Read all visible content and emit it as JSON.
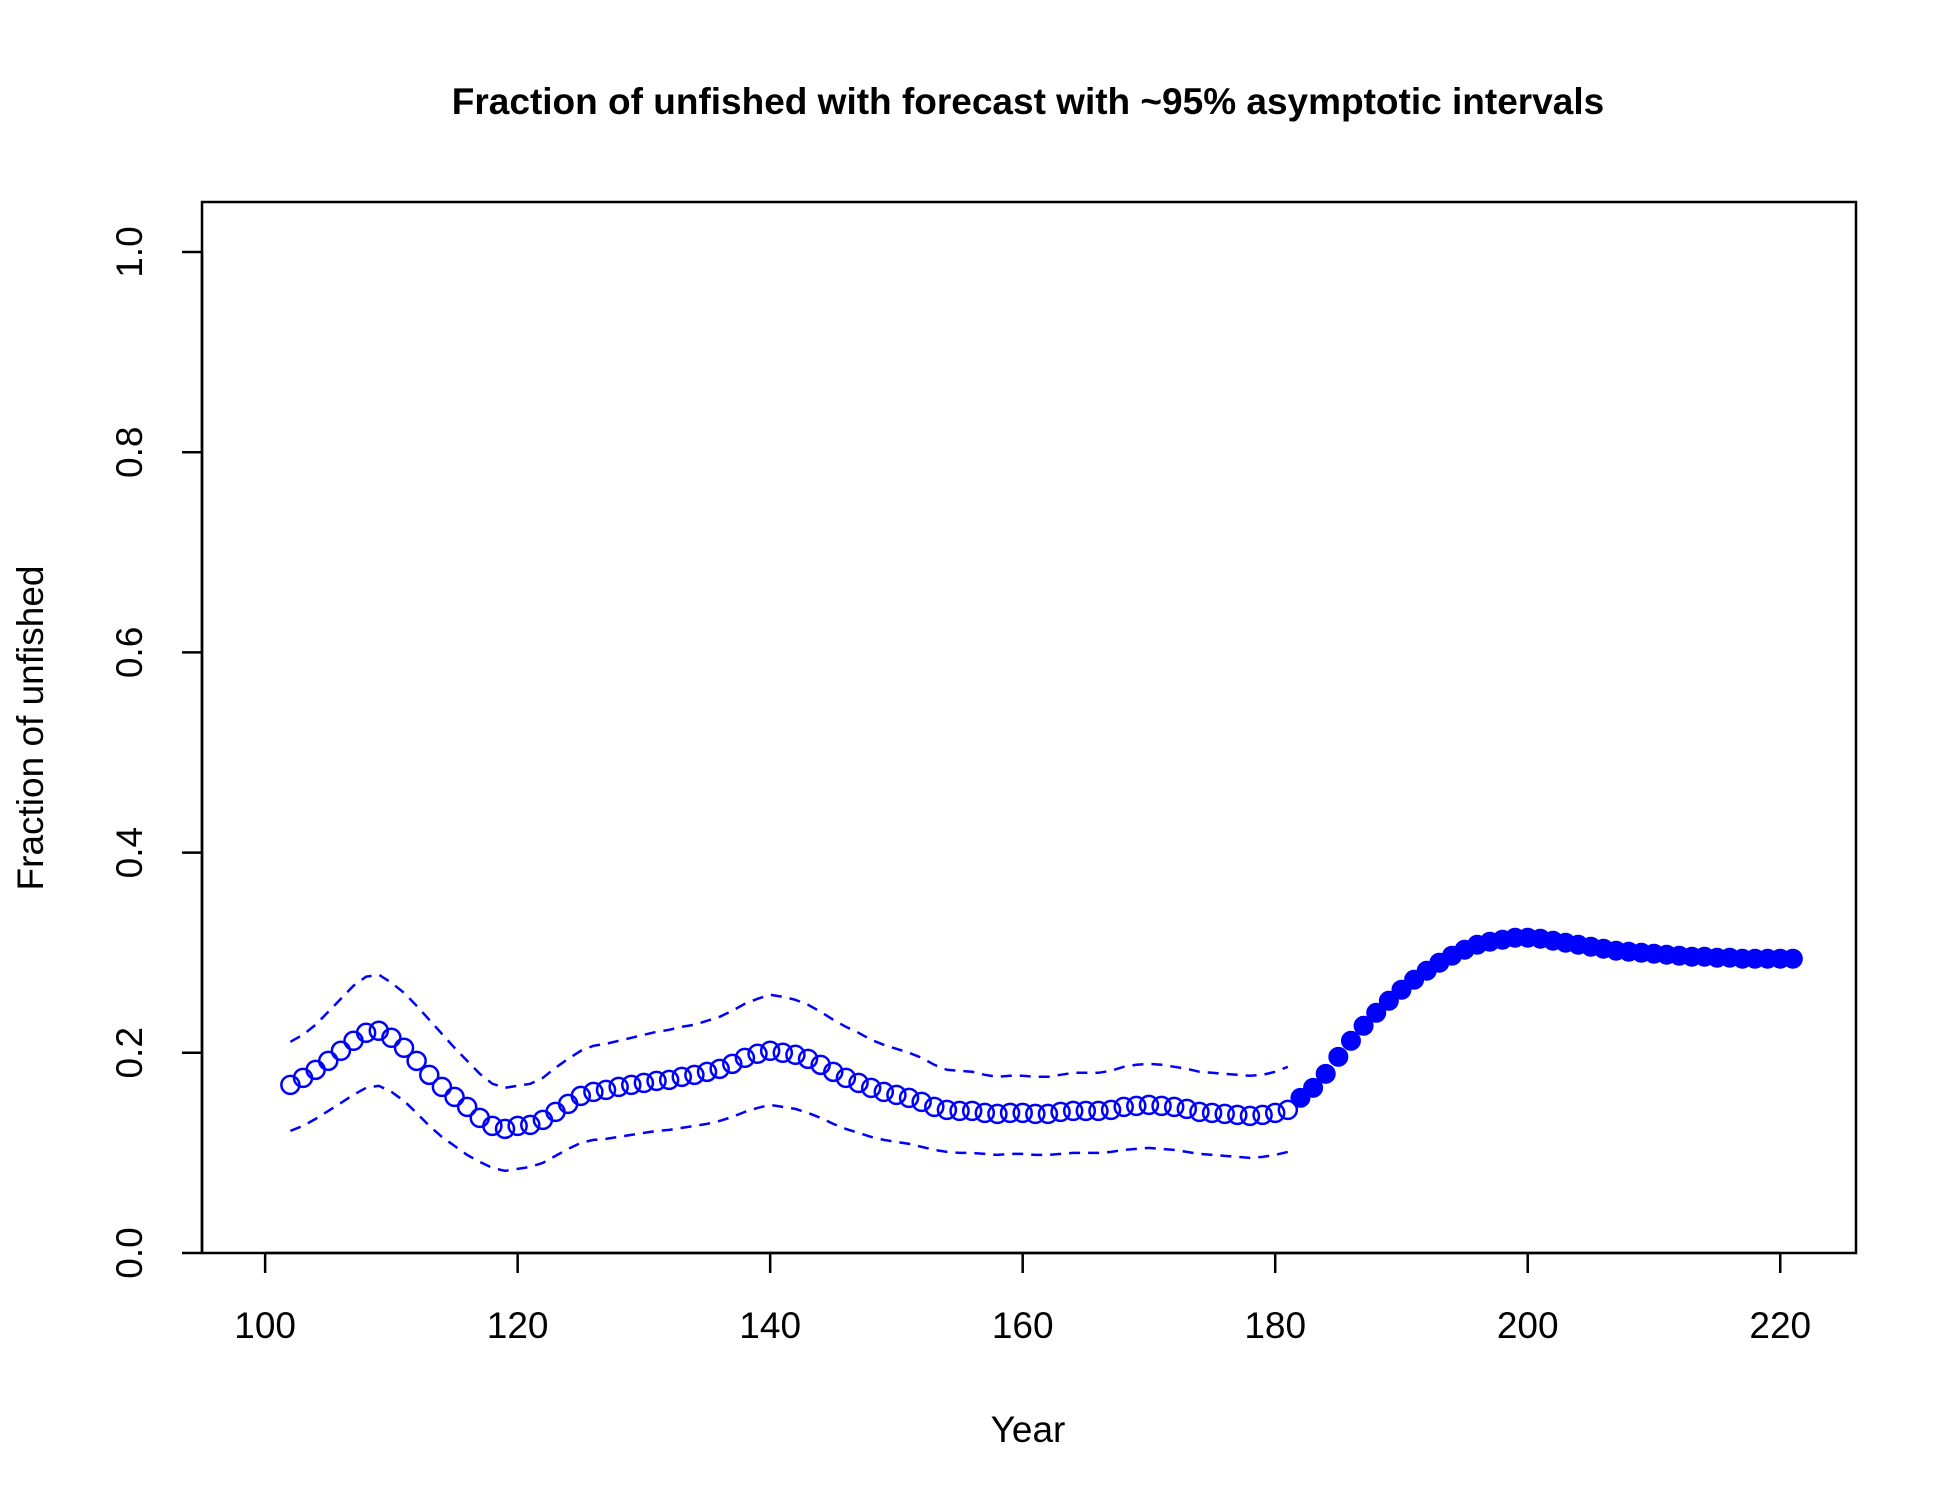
{
  "chart_data": {
    "type": "line",
    "title": "Fraction of unfished with forecast with ~95% asymptotic intervals",
    "xlabel": "Year",
    "ylabel": "Fraction of unfished",
    "xlim": [
      95,
      226
    ],
    "ylim": [
      0,
      1.05
    ],
    "xticks": [
      100,
      120,
      140,
      160,
      180,
      200,
      220
    ],
    "xtick_labels": [
      "100",
      "120",
      "140",
      "160",
      "180",
      "200",
      "220"
    ],
    "yticks": [
      0.0,
      0.2,
      0.4,
      0.6,
      0.8,
      1.0
    ],
    "ytick_labels": [
      "0.0",
      "0.2",
      "0.4",
      "0.6",
      "0.8",
      "1.0"
    ],
    "grid": false,
    "legend": "none",
    "color": "#0000ff",
    "series": [
      {
        "style": "open-circles",
        "x": [
          102,
          103,
          104,
          105,
          106,
          107,
          108,
          109,
          110,
          111,
          112,
          113,
          114,
          115,
          116,
          117,
          118,
          119,
          120,
          121,
          122,
          123,
          124,
          125,
          126,
          127,
          128,
          129,
          130,
          131,
          132,
          133,
          134,
          135,
          136,
          137,
          138,
          139,
          140,
          141,
          142,
          143,
          144,
          145,
          146,
          147,
          148,
          149,
          150,
          151,
          152,
          153,
          154,
          155,
          156,
          157,
          158,
          159,
          160,
          161,
          162,
          163,
          164,
          165,
          166,
          167,
          168,
          169,
          170,
          171,
          172,
          173,
          174,
          175,
          176,
          177,
          178,
          179,
          180,
          181
        ],
        "y": [
          0.168,
          0.175,
          0.183,
          0.192,
          0.202,
          0.212,
          0.22,
          0.222,
          0.215,
          0.205,
          0.192,
          0.178,
          0.166,
          0.156,
          0.146,
          0.135,
          0.127,
          0.124,
          0.127,
          0.128,
          0.133,
          0.141,
          0.149,
          0.157,
          0.161,
          0.163,
          0.166,
          0.168,
          0.17,
          0.172,
          0.173,
          0.176,
          0.178,
          0.181,
          0.184,
          0.189,
          0.195,
          0.199,
          0.202,
          0.2,
          0.198,
          0.194,
          0.188,
          0.181,
          0.175,
          0.17,
          0.165,
          0.161,
          0.158,
          0.155,
          0.151,
          0.146,
          0.143,
          0.142,
          0.142,
          0.14,
          0.139,
          0.14,
          0.14,
          0.139,
          0.139,
          0.141,
          0.142,
          0.142,
          0.142,
          0.143,
          0.146,
          0.147,
          0.148,
          0.147,
          0.146,
          0.144,
          0.141,
          0.14,
          0.139,
          0.138,
          0.137,
          0.138,
          0.14,
          0.143
        ]
      },
      {
        "style": "filled-circles",
        "x": [
          182,
          183,
          184,
          185,
          186,
          187,
          188,
          189,
          190,
          191,
          192,
          193,
          194,
          195,
          196,
          197,
          198,
          199,
          200,
          201,
          202,
          203,
          204,
          205,
          206,
          207,
          208,
          209,
          210,
          211,
          212,
          213,
          214,
          215,
          216,
          217,
          218,
          219,
          220,
          221
        ],
        "y": [
          0.155,
          0.165,
          0.179,
          0.196,
          0.212,
          0.227,
          0.24,
          0.252,
          0.263,
          0.273,
          0.282,
          0.29,
          0.297,
          0.303,
          0.308,
          0.311,
          0.313,
          0.315,
          0.315,
          0.314,
          0.312,
          0.31,
          0.308,
          0.306,
          0.304,
          0.302,
          0.301,
          0.3,
          0.299,
          0.298,
          0.297,
          0.296,
          0.296,
          0.295,
          0.295,
          0.294,
          0.294,
          0.294,
          0.294,
          0.294
        ]
      },
      {
        "style": "dashed",
        "x": [
          102,
          103,
          104,
          105,
          106,
          107,
          108,
          109,
          110,
          111,
          112,
          113,
          114,
          115,
          116,
          117,
          118,
          119,
          120,
          121,
          122,
          123,
          124,
          125,
          126,
          127,
          128,
          129,
          130,
          131,
          132,
          133,
          134,
          135,
          136,
          137,
          138,
          139,
          140,
          141,
          142,
          143,
          144,
          145,
          146,
          147,
          148,
          149,
          150,
          151,
          152,
          153,
          154,
          155,
          156,
          157,
          158,
          159,
          160,
          161,
          162,
          163,
          164,
          165,
          166,
          167,
          168,
          169,
          170,
          171,
          172,
          173,
          174,
          175,
          176,
          177,
          178,
          179,
          180,
          181
        ],
        "y": [
          0.211,
          0.218,
          0.228,
          0.241,
          0.254,
          0.267,
          0.276,
          0.278,
          0.27,
          0.26,
          0.247,
          0.233,
          0.219,
          0.205,
          0.192,
          0.179,
          0.169,
          0.165,
          0.167,
          0.169,
          0.175,
          0.185,
          0.194,
          0.202,
          0.207,
          0.209,
          0.212,
          0.215,
          0.218,
          0.221,
          0.223,
          0.226,
          0.228,
          0.232,
          0.236,
          0.242,
          0.249,
          0.254,
          0.258,
          0.256,
          0.253,
          0.248,
          0.241,
          0.233,
          0.226,
          0.22,
          0.213,
          0.208,
          0.204,
          0.2,
          0.195,
          0.188,
          0.183,
          0.182,
          0.181,
          0.178,
          0.176,
          0.177,
          0.177,
          0.176,
          0.176,
          0.178,
          0.18,
          0.18,
          0.18,
          0.182,
          0.186,
          0.188,
          0.189,
          0.188,
          0.186,
          0.184,
          0.181,
          0.18,
          0.179,
          0.178,
          0.177,
          0.178,
          0.181,
          0.186
        ]
      },
      {
        "style": "dashed",
        "x": [
          102,
          103,
          104,
          105,
          106,
          107,
          108,
          109,
          110,
          111,
          112,
          113,
          114,
          115,
          116,
          117,
          118,
          119,
          120,
          121,
          122,
          123,
          124,
          125,
          126,
          127,
          128,
          129,
          130,
          131,
          132,
          133,
          134,
          135,
          136,
          137,
          138,
          139,
          140,
          141,
          142,
          143,
          144,
          145,
          146,
          147,
          148,
          149,
          150,
          151,
          152,
          153,
          154,
          155,
          156,
          157,
          158,
          159,
          160,
          161,
          162,
          163,
          164,
          165,
          166,
          167,
          168,
          169,
          170,
          171,
          172,
          173,
          174,
          175,
          176,
          177,
          178,
          179,
          180,
          181
        ],
        "y": [
          0.122,
          0.127,
          0.134,
          0.142,
          0.15,
          0.158,
          0.165,
          0.167,
          0.161,
          0.152,
          0.14,
          0.127,
          0.116,
          0.107,
          0.098,
          0.091,
          0.085,
          0.082,
          0.084,
          0.086,
          0.09,
          0.097,
          0.104,
          0.11,
          0.113,
          0.114,
          0.116,
          0.118,
          0.12,
          0.122,
          0.123,
          0.125,
          0.127,
          0.129,
          0.132,
          0.136,
          0.141,
          0.145,
          0.148,
          0.146,
          0.144,
          0.14,
          0.135,
          0.129,
          0.124,
          0.12,
          0.116,
          0.113,
          0.111,
          0.109,
          0.106,
          0.103,
          0.101,
          0.1,
          0.1,
          0.099,
          0.098,
          0.099,
          0.099,
          0.098,
          0.098,
          0.099,
          0.1,
          0.1,
          0.1,
          0.101,
          0.103,
          0.104,
          0.105,
          0.104,
          0.103,
          0.101,
          0.099,
          0.098,
          0.097,
          0.096,
          0.095,
          0.096,
          0.098,
          0.101
        ]
      }
    ]
  }
}
